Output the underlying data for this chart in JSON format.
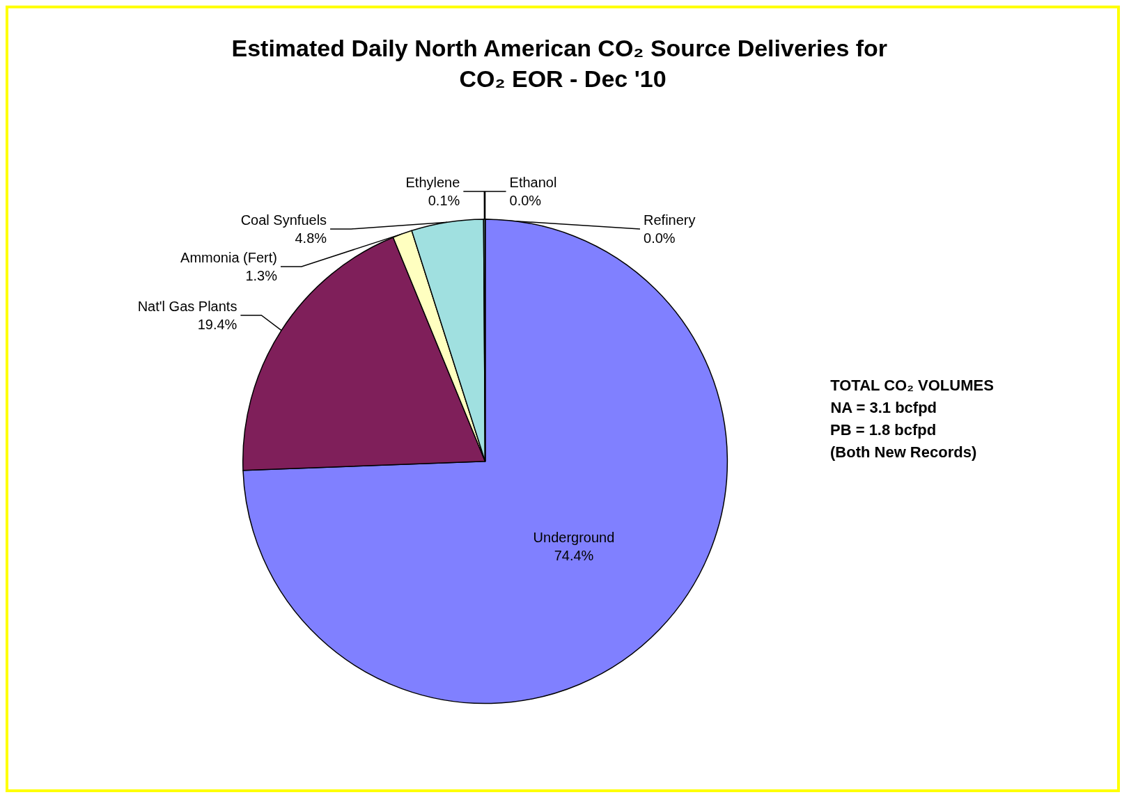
{
  "chart_data": {
    "type": "pie",
    "title": "Estimated Daily North American CO₂ Source Deliveries for CO₂ EOR - Dec '10",
    "categories": [
      "Underground",
      "Nat'l Gas Plants",
      "Ammonia (Fert)",
      "Coal Synfuels",
      "Ethylene",
      "Ethanol",
      "Refinery"
    ],
    "values": [
      74.4,
      19.4,
      1.3,
      4.8,
      0.1,
      0.0,
      0.0
    ],
    "value_labels": [
      "74.4%",
      "19.4%",
      "1.3%",
      "4.8%",
      "0.1%",
      "0.0%",
      "0.0%"
    ],
    "colors": [
      "#8080ff",
      "#7f1f5a",
      "#ffffc0",
      "#a0e0e0",
      "#a0e0e0",
      "#ff8080",
      "#c0c0ff"
    ],
    "annotations": [
      "TOTAL CO₂ VOLUMES",
      "NA = 3.1 bcfpd",
      "PB = 1.8 bcfpd",
      "(Both New Records)"
    ],
    "legend": false
  }
}
